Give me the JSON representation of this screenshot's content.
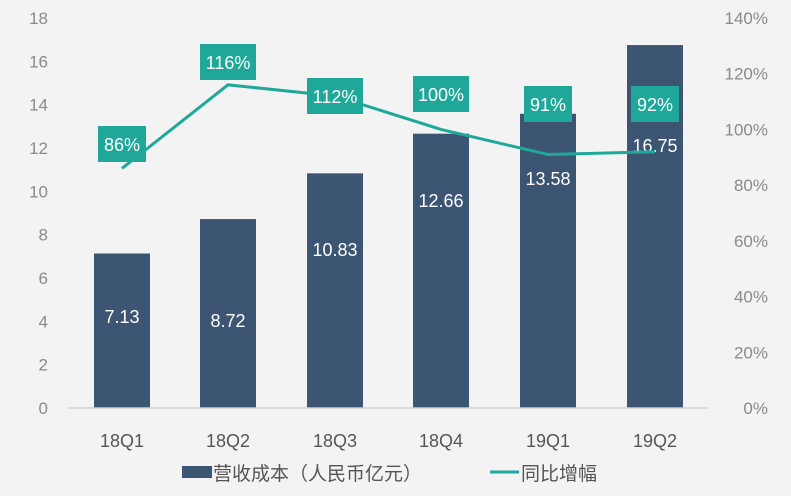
{
  "chart_data": {
    "type": "bar+line",
    "categories": [
      "18Q1",
      "18Q2",
      "18Q3",
      "18Q4",
      "19Q1",
      "19Q2"
    ],
    "series": [
      {
        "name": "营收成本（人民币亿元）",
        "type": "bar",
        "axis": "left",
        "values": [
          7.13,
          8.72,
          10.83,
          12.66,
          13.58,
          16.75
        ],
        "labels": [
          "7.13",
          "8.72",
          "10.83",
          "12.66",
          "13.58",
          "16.75"
        ]
      },
      {
        "name": "同比增幅",
        "type": "line",
        "axis": "right",
        "values": [
          86,
          116,
          112,
          100,
          91,
          92
        ],
        "labels": [
          "86%",
          "116%",
          "112%",
          "100%",
          "91%",
          "92%"
        ]
      }
    ],
    "left_axis": {
      "range": [
        0,
        18
      ],
      "ticks": [
        "0",
        "2",
        "4",
        "6",
        "8",
        "10",
        "12",
        "14",
        "16",
        "18"
      ]
    },
    "right_axis": {
      "range": [
        0,
        140
      ],
      "unit": "%",
      "ticks": [
        "0%",
        "20%",
        "40%",
        "60%",
        "80%",
        "100%",
        "120%",
        "140%"
      ]
    },
    "grid": false,
    "legend_position": "bottom",
    "colors": {
      "bar": "#3b5573",
      "line": "#1fa89a",
      "background": "#f3f3f3"
    }
  }
}
